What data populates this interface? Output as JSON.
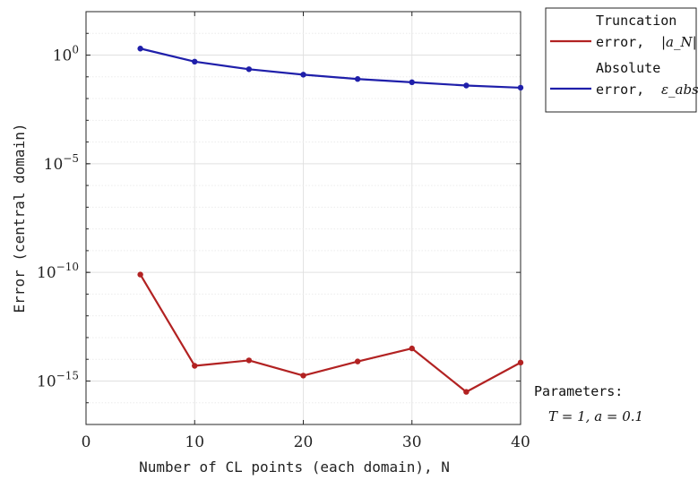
{
  "chart_data": {
    "type": "line",
    "xlabel": "Number of CL points (each domain), N",
    "ylabel": "Error (central domain)",
    "xlim": [
      0,
      40
    ],
    "ylim_log10": [
      -17,
      2
    ],
    "y_scale": "log",
    "grid": true,
    "x_ticks": [
      {
        "value": 0,
        "label": "0"
      },
      {
        "value": 10,
        "label": "10"
      },
      {
        "value": 20,
        "label": "20"
      },
      {
        "value": 30,
        "label": "30"
      },
      {
        "value": 40,
        "label": "40"
      }
    ],
    "y_ticks": [
      {
        "exp": 0,
        "label": "0"
      },
      {
        "exp": -5,
        "label": "−5"
      },
      {
        "exp": -10,
        "label": "−10"
      },
      {
        "exp": -15,
        "label": "−15"
      }
    ],
    "x": [
      5,
      10,
      15,
      20,
      25,
      30,
      35,
      40
    ],
    "series": [
      {
        "name": "Truncation error, |a_N|",
        "color": "#b22222",
        "log10_values": [
          -10.1,
          -14.3,
          -14.05,
          -14.75,
          -14.1,
          -13.5,
          -15.5,
          -14.15
        ]
      },
      {
        "name": "Absolute error, ε_abs",
        "color": "#1f1faa",
        "log10_values": [
          0.3,
          -0.3,
          -0.65,
          -0.9,
          -1.1,
          -1.25,
          -1.4,
          -1.5
        ]
      }
    ],
    "legend": {
      "placement": "outside-top-right",
      "entries": [
        {
          "line1": "Truncation",
          "line2": "error, ",
          "math": "|a_N|"
        },
        {
          "line1": "Absolute",
          "line2": "error, ",
          "math": "ε_abs"
        }
      ]
    },
    "annotation": {
      "title": "Parameters:",
      "line": "T = 1, a = 0.1"
    }
  }
}
